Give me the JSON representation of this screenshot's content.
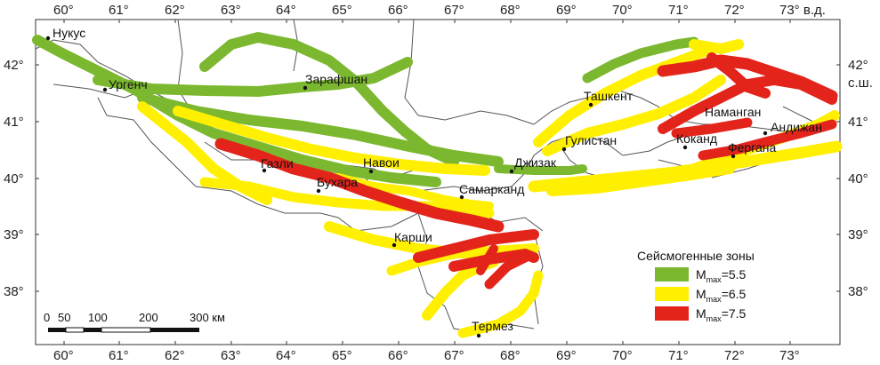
{
  "map": {
    "lon_ticks_top": [
      "60°",
      "61°",
      "62°",
      "63°",
      "64°",
      "65°",
      "66°",
      "67°",
      "68°",
      "69°",
      "70°",
      "71°",
      "72°",
      "73° в.д."
    ],
    "lon_ticks_bottom": [
      "60°",
      "61°",
      "62°",
      "63°",
      "64°",
      "65°",
      "66°",
      "67°",
      "68°",
      "69°",
      "70°",
      "71°",
      "72°",
      "73°"
    ],
    "lat_ticks_left": [
      "42°",
      "41°",
      "40°",
      "39°",
      "38°"
    ],
    "lat_ticks_right": [
      "42°",
      "с.ш.",
      "41°",
      "40°",
      "39°",
      "38°"
    ],
    "cities": [
      {
        "name": "Нукус"
      },
      {
        "name": "Ургенч"
      },
      {
        "name": "Зарафшан"
      },
      {
        "name": "Ташкент"
      },
      {
        "name": "Наманган"
      },
      {
        "name": "Андижан"
      },
      {
        "name": "Гулистан"
      },
      {
        "name": "Коканд"
      },
      {
        "name": "Фергана"
      },
      {
        "name": "Газли"
      },
      {
        "name": "Навои"
      },
      {
        "name": "Джизак"
      },
      {
        "name": "Бухара"
      },
      {
        "name": "Самарканд"
      },
      {
        "name": "Карши"
      },
      {
        "name": "Термез"
      }
    ],
    "legend": {
      "title": "Сейсмогенные зоны",
      "items": [
        {
          "main": "M",
          "sub": "max",
          "value": "=5.5",
          "color": "#7cb82f"
        },
        {
          "main": "M",
          "sub": "max",
          "value": "=6.5",
          "color": "#ffef00"
        },
        {
          "main": "M",
          "sub": "max",
          "value": "=7.5",
          "color": "#e3241b"
        }
      ]
    },
    "scale": {
      "labels": [
        "0",
        "50",
        "100",
        "200",
        "300 км"
      ]
    }
  }
}
